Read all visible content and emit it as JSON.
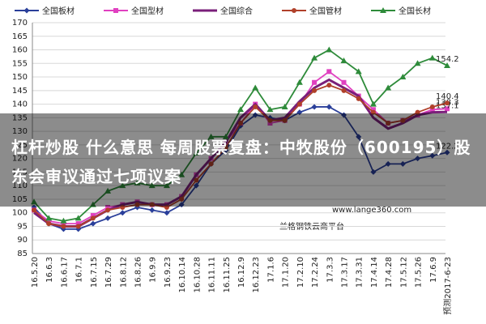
{
  "chart_data": {
    "type": "line",
    "categories": [
      "16.5.20",
      "16.6.3",
      "16.6.17",
      "16.7.1",
      "16.7.15",
      "16.7.29",
      "16.8.12",
      "16.8.26",
      "16.9.9",
      "16.9.23",
      "16.10.14",
      "16.10.28",
      "16.11.11",
      "16.11.25",
      "16.12.9",
      "16.12.23",
      "17.1.6",
      "17.1.20",
      "17.2.10",
      "17.2.24",
      "17.3.3",
      "17.3.17",
      "17.3.31",
      "17.4.14",
      "17.4.28",
      "17.5.12",
      "17.5.26",
      "17.6.9",
      "预测2017-6-23"
    ],
    "series": [
      {
        "name": "全国板材",
        "color": "#2a3f9a",
        "marker": "diamond",
        "values": [
          102,
          96,
          94,
          94,
          96,
          98,
          100,
          102,
          101,
          100,
          103,
          110,
          118,
          123,
          132,
          136,
          135,
          134,
          137,
          139,
          139,
          136,
          128,
          115,
          118,
          118,
          120,
          121,
          122.2
        ]
      },
      {
        "name": "全国型材",
        "color": "#e040c0",
        "marker": "square",
        "values": [
          101,
          97,
          96,
          96,
          99,
          102,
          103,
          104,
          103,
          103,
          106,
          114,
          120,
          126,
          133,
          140,
          133,
          134,
          140,
          148,
          152,
          148,
          143,
          138,
          133,
          134,
          136,
          138,
          138.3
        ]
      },
      {
        "name": "全国综合",
        "color": "#7a1f7a",
        "marker": "none",
        "values": [
          100,
          96,
          95,
          95,
          98,
          101,
          103,
          104,
          103,
          103,
          106,
          114,
          120,
          126,
          135,
          140,
          134,
          135,
          141,
          146,
          149,
          146,
          143,
          135,
          131,
          133,
          136,
          137,
          137.1
        ]
      },
      {
        "name": "全国管材",
        "color": "#b0402a",
        "marker": "circle",
        "values": [
          101,
          96,
          95,
          95,
          98,
          101,
          102,
          103,
          103,
          102,
          105,
          112,
          118,
          124,
          133,
          139,
          134,
          134,
          140,
          145,
          147,
          145,
          142,
          137,
          133,
          134,
          137,
          139,
          140.4
        ]
      },
      {
        "name": "全国长材",
        "color": "#2e8b3a",
        "marker": "triangle",
        "values": [
          104,
          98,
          97,
          98,
          103,
          108,
          110,
          111,
          110,
          110,
          114,
          122,
          128,
          128,
          138,
          146,
          138,
          139,
          148,
          157,
          160,
          156,
          152,
          140,
          146,
          150,
          155,
          157,
          154.2
        ]
      }
    ],
    "ylim": [
      85,
      170
    ],
    "yticks": [
      85,
      90,
      95,
      100,
      105,
      110,
      115,
      120,
      125,
      130,
      135,
      140,
      145,
      150,
      155,
      160,
      165,
      170
    ],
    "grid": true
  },
  "overlay": {
    "headline": "杠杆炒股 什么意思 每周股票复盘：中牧股份（600195）股东会审议通过七项议案",
    "watermark_url": "www.lange360.com",
    "watermark_name": "兰格钢铁云商平台"
  }
}
